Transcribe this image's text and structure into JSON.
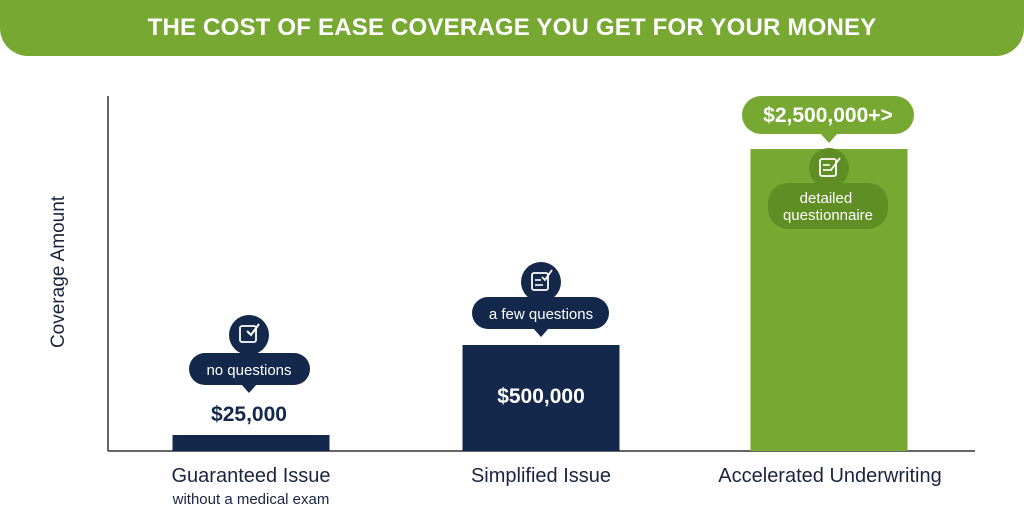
{
  "banner": {
    "title": "THE COST OF EASE COVERAGE YOU GET FOR YOUR MONEY"
  },
  "colors": {
    "navy": "#13284b",
    "green": "#76a832",
    "text": "#1a2440",
    "axis": "#333333"
  },
  "chart_data": {
    "type": "bar",
    "title": "THE COST OF EASE COVERAGE YOU GET FOR YOUR MONEY",
    "ylabel": "Coverage Amount",
    "xlabel": "",
    "grid": false,
    "categories": [
      "Guaranteed Issue",
      "Simplified Issue",
      "Accelerated Underwriting"
    ],
    "category_sublabels": [
      "without a medical exam",
      "",
      ""
    ],
    "values": [
      25000,
      500000,
      2500000
    ],
    "value_labels": [
      "$25,000",
      "$500,000",
      "$2,500,000+>"
    ],
    "annotations": [
      "no questions",
      "a few questions",
      "detailed questionnaire"
    ],
    "bar_colors": [
      "#13284b",
      "#13284b",
      "#76a832"
    ],
    "icons": [
      "checkbox-icon",
      "checklist-icon",
      "questionnaire-icon"
    ]
  }
}
